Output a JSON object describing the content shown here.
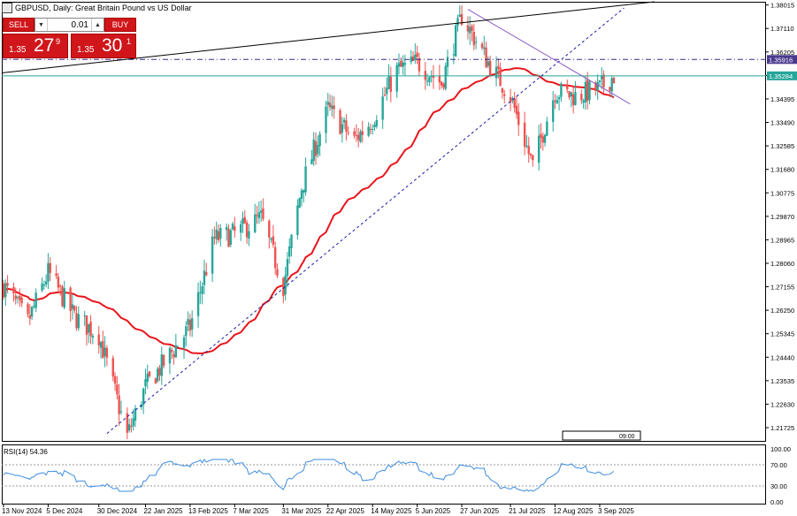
{
  "header": {
    "symbol_title": "GBPUSD, Daily:  Great Britain Pound vs US Dollar"
  },
  "trade_panel": {
    "sell_label": "SELL",
    "buy_label": "BUY",
    "lot_value": "0.01",
    "sell_price_small": "1.35",
    "sell_price_big": "27",
    "sell_price_sup": "9",
    "buy_price_small": "1.35",
    "buy_price_big": "30",
    "buy_price_sup": "1"
  },
  "colors": {
    "bull_candle": "#26a69a",
    "bear_candle": "#ef5350",
    "moving_average": "#e8151b",
    "support_trendline": "#1a1aa6",
    "resistance_trendline": "#8b5cc4",
    "long_trendline": "#000000",
    "horizontal_dashdot": "#3a2a8a",
    "bid_line": "#26a69a",
    "rsi_line": "#3d8de0",
    "sell_buy": "#d0161b"
  },
  "rsi": {
    "label": "RSI(14) 54.36",
    "levels": [
      "100.00",
      "70.00",
      "30.00",
      "0.00"
    ]
  },
  "chart_data": {
    "type": "candlestick",
    "symbol": "GBPUSD",
    "timeframe": "Daily",
    "x_labels": [
      "13 Nov 2024",
      "5 Dec 2024",
      "30 Dec 2024",
      "22 Jan 2025",
      "13 Feb 2025",
      "7 Mar 2025",
      "31 Mar 2025",
      "22 Apr 2025",
      "14 May 2025",
      "5 Jun 2025",
      "27 Jun 2025",
      "21 Jul 2025",
      "12 Aug 2025",
      "3 Sep 2025"
    ],
    "y_ticks": [
      "1.38015",
      "1.37110",
      "1.36205",
      "1.35300",
      "1.34395",
      "1.33490",
      "1.32585",
      "1.31680",
      "1.30775",
      "1.29870",
      "1.28965",
      "1.28060",
      "1.27155",
      "1.26250",
      "1.25345",
      "1.24440",
      "1.23535",
      "1.22630",
      "1.21725"
    ],
    "ylim": [
      1.2118,
      1.3814
    ],
    "price_labels": [
      {
        "text": "1.35916",
        "value": 1.35916
      },
      {
        "text": "1.35284",
        "value": 1.35284
      }
    ],
    "time_box_label": "09:00",
    "anchors": [
      {
        "date": "13 Nov 2024",
        "close": 1.272
      },
      {
        "date": "25 Nov 2024",
        "close": 1.258
      },
      {
        "date": "5 Dec 2024",
        "close": 1.277
      },
      {
        "date": "18 Dec 2024",
        "close": 1.26
      },
      {
        "date": "30 Dec 2024",
        "close": 1.253
      },
      {
        "date": "13 Jan 2025",
        "close": 1.214
      },
      {
        "date": "22 Jan 2025",
        "close": 1.233
      },
      {
        "date": "31 Jan 2025",
        "close": 1.242
      },
      {
        "date": "13 Feb 2025",
        "close": 1.256
      },
      {
        "date": "25 Feb 2025",
        "close": 1.29
      },
      {
        "date": "7 Mar 2025",
        "close": 1.292
      },
      {
        "date": "20 Mar 2025",
        "close": 1.298
      },
      {
        "date": "31 Mar 2025",
        "close": 1.272
      },
      {
        "date": "9 Apr 2025",
        "close": 1.31
      },
      {
        "date": "22 Apr 2025",
        "close": 1.34
      },
      {
        "date": "5 May 2025",
        "close": 1.328
      },
      {
        "date": "14 May 2025",
        "close": 1.336
      },
      {
        "date": "26 May 2025",
        "close": 1.355
      },
      {
        "date": "5 Jun 2025",
        "close": 1.358
      },
      {
        "date": "17 Jun 2025",
        "close": 1.35
      },
      {
        "date": "27 Jun 2025",
        "close": 1.376
      },
      {
        "date": "10 Jul 2025",
        "close": 1.358
      },
      {
        "date": "21 Jul 2025",
        "close": 1.345
      },
      {
        "date": "1 Aug 2025",
        "close": 1.318
      },
      {
        "date": "12 Aug 2025",
        "close": 1.347
      },
      {
        "date": "22 Aug 2025",
        "close": 1.345
      },
      {
        "date": "3 Sep 2025",
        "close": 1.348
      },
      {
        "date": "10 Sep 2025",
        "close": 1.3528
      }
    ]
  }
}
